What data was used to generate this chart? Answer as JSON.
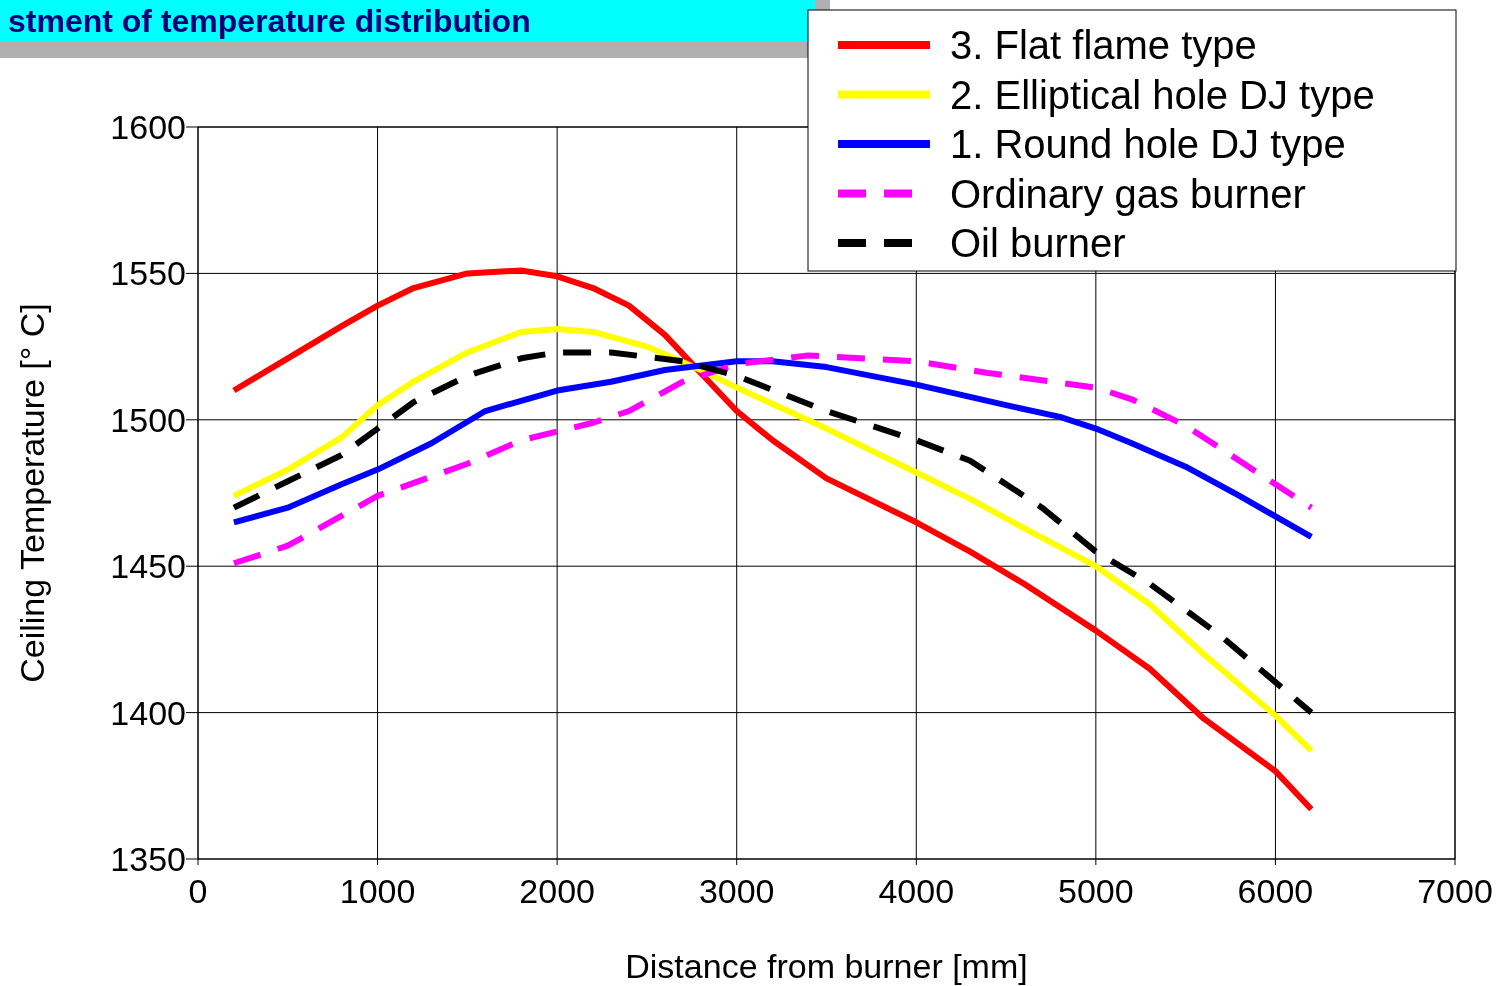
{
  "chart_data": {
    "type": "line",
    "title": "stment of temperature distribution",
    "xlabel": "Distance from burner [mm]",
    "ylabel": "Ceiling Temperature [° C]",
    "xlim": [
      0,
      7000
    ],
    "xticks": [
      0,
      1000,
      2000,
      3000,
      4000,
      5000,
      6000,
      7000
    ],
    "ylim": [
      1350,
      1600
    ],
    "yticks": [
      1350,
      1400,
      1450,
      1500,
      1550,
      1600
    ],
    "grid": true,
    "legend": "top right",
    "series": [
      {
        "name": "3. Flat flame type",
        "color": "#ff0000",
        "line_style": "solid",
        "x": [
          200,
          500,
          800,
          1000,
          1200,
          1500,
          1800,
          2000,
          2200,
          2400,
          2600,
          2800,
          3000,
          3200,
          3500,
          4000,
          4300,
          4600,
          5000,
          5300,
          5600,
          6000,
          6200
        ],
        "values": [
          1510,
          1521,
          1532,
          1539,
          1545,
          1550,
          1551,
          1549,
          1545,
          1539,
          1529,
          1516,
          1503,
          1493,
          1480,
          1465,
          1455,
          1444,
          1428,
          1415,
          1398,
          1380,
          1367
        ]
      },
      {
        "name": "2. Elliptical hole DJ type",
        "color": "#ffff00",
        "line_style": "solid",
        "x": [
          200,
          500,
          800,
          1000,
          1200,
          1500,
          1800,
          2000,
          2200,
          2500,
          2800,
          3000,
          3500,
          4000,
          4300,
          4600,
          5000,
          5300,
          5600,
          6000,
          6200
        ],
        "values": [
          1474,
          1483,
          1494,
          1505,
          1513,
          1523,
          1530,
          1531,
          1530,
          1525,
          1517,
          1511,
          1497,
          1482,
          1473,
          1463,
          1450,
          1437,
          1420,
          1399,
          1387
        ]
      },
      {
        "name": "1. Round hole DJ type",
        "color": "#0000ff",
        "line_style": "solid",
        "x": [
          200,
          500,
          800,
          1000,
          1300,
          1600,
          2000,
          2300,
          2600,
          3000,
          3200,
          3500,
          4000,
          4500,
          4800,
          5000,
          5200,
          5500,
          5800,
          6200
        ],
        "values": [
          1465,
          1470,
          1478,
          1483,
          1492,
          1503,
          1510,
          1513,
          1517,
          1520,
          1520,
          1518,
          1512,
          1505,
          1501,
          1497,
          1492,
          1484,
          1474,
          1460
        ]
      },
      {
        "name": "Ordinary gas burner",
        "color": "#ff00ff",
        "line_style": "dashed",
        "x": [
          200,
          500,
          1000,
          1500,
          1800,
          2200,
          2400,
          2700,
          3000,
          3400,
          4000,
          4400,
          5000,
          5200,
          5500,
          5800,
          6200
        ],
        "values": [
          1451,
          1457,
          1474,
          1485,
          1493,
          1499,
          1503,
          1513,
          1519,
          1522,
          1520,
          1516,
          1511,
          1507,
          1498,
          1486,
          1470
        ]
      },
      {
        "name": "Oil burner",
        "color": "#000000",
        "line_style": "dashed",
        "x": [
          200,
          500,
          800,
          1000,
          1200,
          1500,
          1800,
          2000,
          2300,
          2700,
          3000,
          3500,
          4000,
          4300,
          4700,
          5000,
          5300,
          5700,
          6200
        ],
        "values": [
          1470,
          1479,
          1488,
          1497,
          1506,
          1515,
          1521,
          1523,
          1523,
          1520,
          1515,
          1503,
          1493,
          1486,
          1470,
          1455,
          1444,
          1426,
          1400
        ]
      }
    ]
  }
}
